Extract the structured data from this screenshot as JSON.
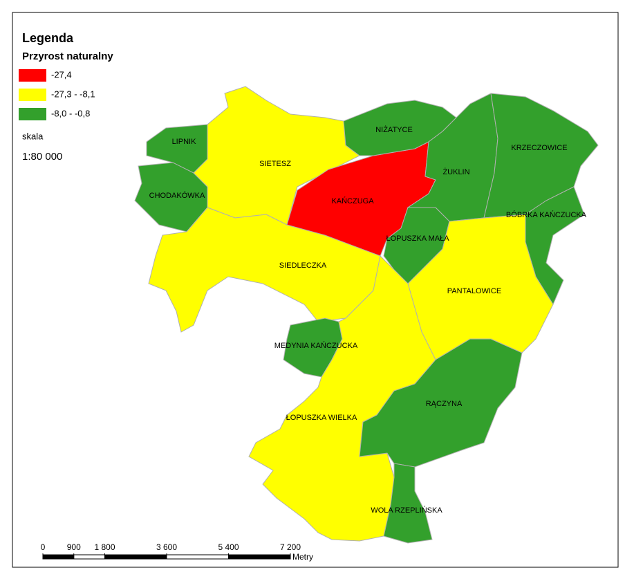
{
  "legend": {
    "title": "Legenda",
    "subtitle": "Przyrost naturalny",
    "classes": [
      {
        "label": "-27,4",
        "color": "#ff0000"
      },
      {
        "label": "-27,3 - -8,1",
        "color": "#ffff00"
      },
      {
        "label": "-8,0 - -0,8",
        "color": "#33a02c"
      }
    ],
    "scale_title": "skala",
    "scale_text": "1:80 000"
  },
  "regions": [
    {
      "name": "LIPNIK",
      "class": 2
    },
    {
      "name": "CHODAKÓWKA",
      "class": 2
    },
    {
      "name": "SIETESZ",
      "class": 1
    },
    {
      "name": "SIEDLECZKA",
      "class": 1
    },
    {
      "name": "KAŃCZUGA",
      "class": 0
    },
    {
      "name": "NIŻATYCE",
      "class": 2
    },
    {
      "name": "ŻUKLIN",
      "class": 2
    },
    {
      "name": "KRZECZOWICE",
      "class": 2
    },
    {
      "name": "ŁOPUSZKA MAŁA",
      "class": 2
    },
    {
      "name": "BÓBRKA KAŃCZUCKA",
      "class": 2
    },
    {
      "name": "PANTALOWICE",
      "class": 1
    },
    {
      "name": "MEDYNIA KAŃCZUCKA",
      "class": 2
    },
    {
      "name": "ŁOPUSZKA WIELKA",
      "class": 1
    },
    {
      "name": "RĄCZYNA",
      "class": 2
    },
    {
      "name": "WOLA RZEPLIŃSKA",
      "class": 2
    }
  ],
  "scale_bar": {
    "ticks": [
      0,
      900,
      {
        "value": 1800,
        "label": "1 800"
      },
      {
        "value": 3600,
        "label": "3 600"
      },
      {
        "value": 5400,
        "label": "5 400"
      },
      {
        "value": 7200,
        "label": "7 200"
      }
    ],
    "unit": "Metry"
  }
}
